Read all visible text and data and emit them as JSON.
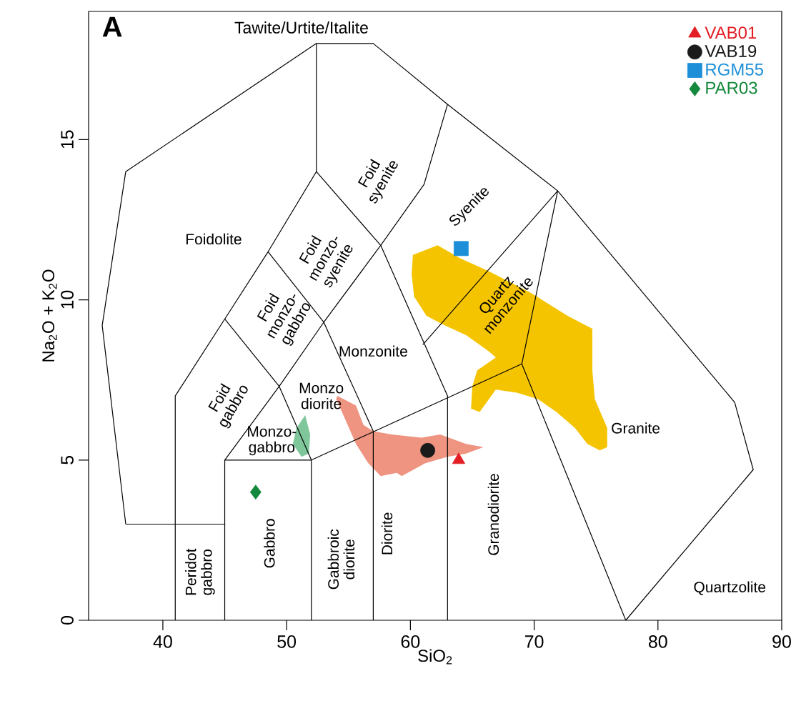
{
  "chart_data": {
    "type": "scatter",
    "title": "A",
    "xlabel": "SiO$_{2}$",
    "ylabel": "Na$_{2}$O + K$_{2}$O",
    "xlim": [
      34,
      90
    ],
    "ylim": [
      0,
      19
    ],
    "xticks": [
      40,
      50,
      60,
      70,
      80,
      90
    ],
    "yticks": [
      0,
      5,
      10,
      15
    ],
    "legend": "top right",
    "series": [
      {
        "type": "area",
        "color": "#f5c400",
        "x": [
          60.2,
          62.2,
          64.0,
          66.3,
          69.8,
          72.7,
          74.7,
          74.7,
          74.9,
          75.9,
          75.9,
          75.3,
          74.3,
          73.3,
          71.8,
          70.3,
          68.6,
          66.9,
          65.6,
          64.9,
          65.0,
          65.4,
          66.9,
          66.3,
          64.5,
          62.8,
          61.3,
          60.3,
          60.1
        ],
        "values": [
          11.4,
          11.7,
          11.3,
          10.9,
          10.2,
          9.5,
          9.1,
          7.8,
          6.9,
          6.0,
          5.4,
          5.3,
          5.5,
          6.0,
          6.5,
          6.9,
          7.1,
          7.2,
          6.5,
          6.6,
          7.3,
          7.8,
          8.2,
          8.4,
          8.9,
          9.2,
          9.5,
          10.1,
          10.8
        ]
      },
      {
        "type": "area",
        "color": "#ee9480",
        "x": [
          54.1,
          55.6,
          56.2,
          57.0,
          58.5,
          60.9,
          62.4,
          64.5,
          65.9,
          64.5,
          63.0,
          61.2,
          59.3,
          58.9,
          57.6,
          56.6,
          55.6,
          54.7,
          54.0
        ],
        "values": [
          7.0,
          6.7,
          6.1,
          5.9,
          5.8,
          5.7,
          5.8,
          5.5,
          5.4,
          5.2,
          5.1,
          4.9,
          4.5,
          4.6,
          4.5,
          4.9,
          5.5,
          6.3,
          6.9
        ]
      },
      {
        "type": "area",
        "color": "#7fc79b",
        "x": [
          51.5,
          51.9,
          51.8,
          51.2,
          50.5,
          50.8
        ],
        "values": [
          6.4,
          5.8,
          5.2,
          5.1,
          5.5,
          6.0
        ]
      },
      {
        "type": "line",
        "color": "#000000",
        "x": [
          37,
          35.1,
          37,
          52.4,
          57,
          63,
          71.9,
          86.2,
          87.7,
          77.4
        ],
        "values": [
          3,
          9.2,
          14,
          18,
          18,
          16.1,
          13.4,
          6.8,
          4.7,
          0
        ]
      },
      {
        "type": "line",
        "color": "#000000",
        "x": [
          37,
          45
        ],
        "values": [
          3,
          3
        ]
      },
      {
        "type": "line",
        "color": "#000000",
        "x": [
          41,
          41,
          45,
          48.5,
          52.4,
          52.4
        ],
        "values": [
          0,
          7,
          9.4,
          11.5,
          14,
          18
        ]
      },
      {
        "type": "line",
        "color": "#000000",
        "x": [
          45,
          45,
          52,
          52
        ],
        "values": [
          0,
          5,
          5,
          0
        ]
      },
      {
        "type": "line",
        "color": "#000000",
        "x": [
          45,
          49.4,
          53,
          57.6,
          61.1,
          63
        ],
        "values": [
          5,
          7.3,
          9.3,
          11.7,
          13.6,
          16.1
        ]
      },
      {
        "type": "line",
        "color": "#000000",
        "x": [
          45,
          49.4,
          52,
          69,
          77.4
        ],
        "values": [
          9.4,
          7.3,
          5,
          8,
          0
        ]
      },
      {
        "type": "line",
        "color": "#000000",
        "x": [
          48.5,
          53,
          57,
          57
        ],
        "values": [
          11.5,
          9.3,
          5.9,
          0
        ]
      },
      {
        "type": "line",
        "color": "#000000",
        "x": [
          52.4,
          57.6,
          63,
          63
        ],
        "values": [
          14,
          11.7,
          7,
          0
        ]
      },
      {
        "type": "line",
        "color": "#000000",
        "x": [
          61,
          71.9,
          69
        ],
        "values": [
          8.6,
          13.4,
          8
        ]
      },
      {
        "name": "VAB01",
        "color": "#e31e24",
        "marker": "triangle",
        "x": [
          63.9
        ],
        "values": [
          5.0
        ]
      },
      {
        "name": "VAB19",
        "color": "#1a1a1a",
        "marker": "circle",
        "x": [
          61.4
        ],
        "values": [
          5.3
        ]
      },
      {
        "name": "RGM55",
        "color": "#1c8fd8",
        "marker": "square",
        "x": [
          64.1
        ],
        "values": [
          11.6
        ]
      },
      {
        "name": "PAR03",
        "color": "#14883c",
        "marker": "diamond",
        "x": [
          47.5
        ],
        "values": [
          4.0
        ]
      }
    ],
    "annotations": [
      "Tawite/Urtite/Italite",
      "Foidolite",
      "Foid syenite",
      "Foid monzo-syenite",
      "Foid monzo-gabbro",
      "Foid gabbro",
      "Syenite",
      "Quartz monzonite",
      "Monzonite",
      "Monzo diorite",
      "Monzo-gabbro",
      "Granite",
      "Peridot gabbro",
      "Gabbro",
      "Gabbroic diorite",
      "Diorite",
      "Granodiorite",
      "Quartzolite"
    ]
  }
}
